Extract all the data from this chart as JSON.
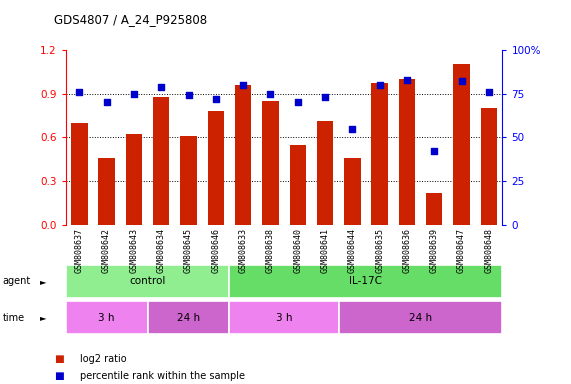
{
  "title": "GDS4807 / A_24_P925808",
  "samples": [
    "GSM808637",
    "GSM808642",
    "GSM808643",
    "GSM808634",
    "GSM808645",
    "GSM808646",
    "GSM808633",
    "GSM808638",
    "GSM808640",
    "GSM808641",
    "GSM808644",
    "GSM808635",
    "GSM808636",
    "GSM808639",
    "GSM808647",
    "GSM808648"
  ],
  "log2_ratio": [
    0.7,
    0.46,
    0.62,
    0.88,
    0.61,
    0.78,
    0.96,
    0.85,
    0.55,
    0.71,
    0.46,
    0.97,
    1.0,
    0.22,
    1.1,
    0.8
  ],
  "percentile": [
    76,
    70,
    75,
    79,
    74,
    72,
    80,
    75,
    70,
    73,
    55,
    80,
    83,
    42,
    82,
    76
  ],
  "agent_groups": [
    {
      "label": "control",
      "start": 0,
      "end": 6,
      "color": "#90ee90"
    },
    {
      "label": "IL-17C",
      "start": 6,
      "end": 16,
      "color": "#66dd66"
    }
  ],
  "time_groups": [
    {
      "label": "3 h",
      "start": 0,
      "end": 3,
      "color": "#ee82ee"
    },
    {
      "label": "24 h",
      "start": 3,
      "end": 6,
      "color": "#cc66cc"
    },
    {
      "label": "3 h",
      "start": 6,
      "end": 10,
      "color": "#ee82ee"
    },
    {
      "label": "24 h",
      "start": 10,
      "end": 16,
      "color": "#cc66cc"
    }
  ],
  "bar_color": "#cc2200",
  "dot_color": "#0000cc",
  "ylim_left": [
    0,
    1.2
  ],
  "ylim_right": [
    0,
    100
  ],
  "yticks_left": [
    0,
    0.3,
    0.6,
    0.9,
    1.2
  ],
  "yticks_right": [
    0,
    25,
    50,
    75,
    100
  ],
  "legend_bar": "log2 ratio",
  "legend_dot": "percentile rank within the sample",
  "bg_color": "#ffffff"
}
